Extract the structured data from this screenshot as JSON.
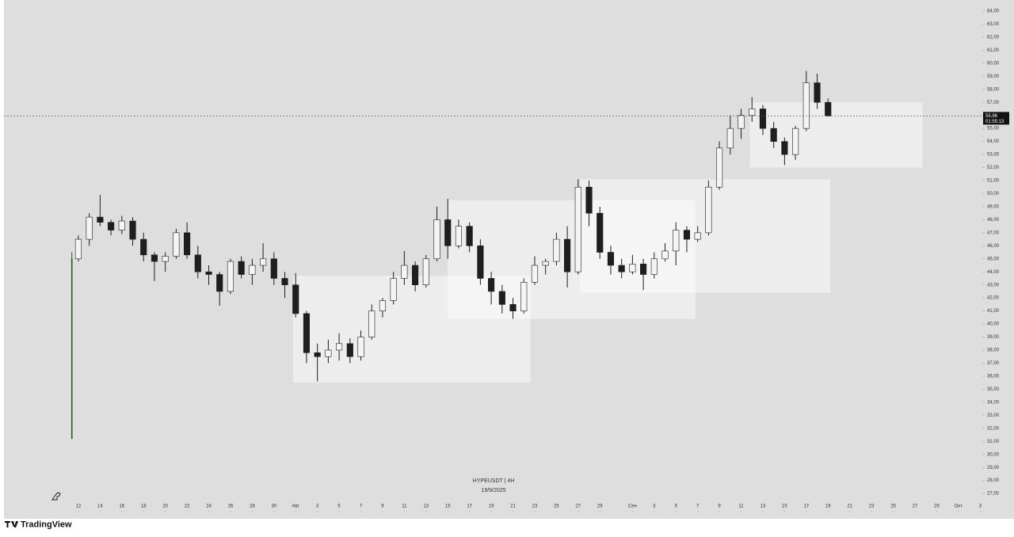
{
  "chart_data": {
    "type": "candlestick",
    "watermark": "HYPEUSDT | 4H",
    "watermark_date": "19/9/2025",
    "brand": "TradingView",
    "up_color": "#f4f4f4",
    "down_color": "#1e1e1e",
    "wick_color": "#1e1e1e",
    "first_color": "#1b5e20",
    "x": [
      11.4,
      12,
      13,
      14,
      15,
      16,
      17,
      18,
      19,
      20,
      21,
      22,
      23,
      24,
      25,
      26,
      27,
      28,
      29,
      30,
      31,
      32,
      33,
      34,
      35,
      36,
      37,
      38,
      39,
      40,
      41,
      42,
      43,
      44,
      45,
      46,
      47,
      48,
      49,
      50,
      51,
      52,
      53,
      54,
      55,
      56,
      57,
      58,
      59,
      60,
      61,
      62,
      63,
      64,
      65,
      66,
      67,
      68,
      69,
      70,
      71,
      72,
      73,
      74,
      75,
      76,
      77,
      78,
      79,
      80,
      81
    ],
    "open": [
      31.2,
      45.0,
      46.5,
      48.2,
      47.8,
      47.2,
      47.9,
      46.5,
      45.3,
      44.8,
      45.2,
      47.0,
      45.3,
      44.0,
      43.8,
      42.5,
      44.8,
      43.8,
      44.5,
      45.0,
      43.5,
      43.0,
      40.8,
      37.8,
      37.5,
      38.0,
      38.5,
      37.5,
      39.0,
      41.0,
      41.8,
      43.5,
      44.5,
      43.0,
      45.0,
      48.0,
      46.0,
      47.5,
      46.0,
      43.5,
      42.5,
      41.5,
      41.0,
      43.2,
      44.5,
      44.8,
      46.5,
      44.0,
      50.5,
      48.5,
      45.5,
      44.5,
      44.0,
      44.6,
      43.8,
      45.0,
      45.6,
      47.2,
      46.5,
      47.0,
      50.5,
      53.5,
      55.0,
      56.0,
      56.5,
      55.0,
      54.0,
      53.0,
      55.0,
      58.5,
      57.0
    ],
    "high": [
      45.5,
      46.8,
      48.5,
      49.9,
      48.0,
      48.3,
      48.2,
      47.0,
      45.5,
      45.5,
      47.3,
      47.8,
      46.0,
      44.5,
      44.0,
      45.0,
      45.2,
      45.0,
      46.2,
      45.5,
      44.0,
      43.9,
      41.0,
      38.5,
      38.8,
      39.3,
      38.9,
      39.5,
      41.5,
      42.0,
      44.0,
      45.6,
      44.8,
      45.3,
      49.0,
      49.6,
      48.0,
      47.8,
      46.5,
      44.0,
      43.0,
      42.0,
      43.5,
      45.2,
      45.0,
      47.0,
      47.5,
      51.1,
      51.0,
      49.0,
      46.0,
      45.0,
      45.3,
      45.0,
      45.5,
      46.2,
      47.8,
      47.5,
      47.5,
      51.0,
      54.0,
      56.0,
      56.5,
      57.4,
      56.8,
      55.5,
      54.3,
      55.2,
      59.4,
      59.2,
      57.3
    ],
    "low": [
      31.2,
      44.8,
      46.0,
      47.5,
      46.8,
      46.9,
      46.0,
      44.8,
      43.3,
      44.0,
      45.0,
      45.0,
      43.5,
      43.0,
      41.4,
      42.3,
      43.5,
      43.0,
      44.0,
      43.0,
      42.0,
      40.5,
      37.0,
      35.6,
      37.0,
      37.2,
      37.0,
      37.2,
      38.8,
      40.5,
      41.5,
      43.0,
      42.5,
      42.8,
      44.8,
      45.0,
      45.8,
      45.5,
      43.0,
      41.5,
      40.8,
      40.4,
      40.8,
      43.0,
      43.8,
      44.5,
      42.8,
      43.8,
      47.5,
      45.0,
      43.8,
      43.5,
      43.8,
      42.6,
      43.5,
      44.8,
      44.5,
      45.5,
      46.3,
      46.8,
      50.3,
      53.0,
      54.2,
      55.5,
      54.5,
      53.5,
      52.2,
      52.6,
      54.8,
      56.5,
      55.9
    ],
    "close": [
      45.0,
      46.5,
      48.2,
      47.8,
      47.2,
      47.9,
      46.5,
      45.3,
      44.8,
      45.2,
      47.0,
      45.3,
      44.0,
      43.8,
      42.5,
      44.8,
      43.8,
      44.5,
      45.0,
      43.5,
      43.0,
      40.8,
      37.8,
      37.5,
      38.0,
      38.5,
      37.5,
      39.0,
      41.0,
      41.8,
      43.5,
      44.5,
      43.0,
      45.0,
      48.0,
      46.0,
      47.5,
      46.0,
      43.5,
      42.5,
      41.5,
      41.0,
      43.2,
      44.5,
      44.8,
      46.5,
      44.0,
      50.5,
      48.5,
      45.5,
      44.5,
      44.0,
      44.6,
      43.8,
      45.0,
      45.6,
      47.2,
      46.5,
      47.0,
      50.5,
      53.5,
      55.0,
      56.0,
      56.5,
      55.0,
      54.0,
      53.0,
      55.0,
      58.5,
      57.0,
      55.96
    ],
    "zones": [
      {
        "x": [
          31.75,
          53.6
        ],
        "y": [
          35.5,
          43.7
        ]
      },
      {
        "x": [
          46.0,
          68.8
        ],
        "y": [
          40.4,
          49.5
        ]
      },
      {
        "x": [
          58.2,
          81.2
        ],
        "y": [
          42.4,
          51.1
        ]
      },
      {
        "x": [
          73.8,
          89.7
        ],
        "y": [
          52.0,
          57.0
        ]
      }
    ],
    "last_price": {
      "value": 55.96,
      "label": "55,96"
    },
    "countdown": "01:55:13",
    "xlim": [
      5.15,
      95.2
    ],
    "ylim": [
      25.67,
      64.85
    ],
    "xticks": [
      {
        "value": 12,
        "label": "12"
      },
      {
        "value": 14,
        "label": "14"
      },
      {
        "value": 16,
        "label": "16"
      },
      {
        "value": 18,
        "label": "18"
      },
      {
        "value": 20,
        "label": "20"
      },
      {
        "value": 22,
        "label": "22"
      },
      {
        "value": 24,
        "label": "24"
      },
      {
        "value": 26,
        "label": "26"
      },
      {
        "value": 28,
        "label": "28"
      },
      {
        "value": 30,
        "label": "30"
      },
      {
        "value": 32,
        "label": "Авг"
      },
      {
        "value": 34,
        "label": "3"
      },
      {
        "value": 36,
        "label": "5"
      },
      {
        "value": 38,
        "label": "7"
      },
      {
        "value": 40,
        "label": "9"
      },
      {
        "value": 42,
        "label": "11"
      },
      {
        "value": 44,
        "label": "13"
      },
      {
        "value": 46,
        "label": "15"
      },
      {
        "value": 48,
        "label": "17"
      },
      {
        "value": 50,
        "label": "19"
      },
      {
        "value": 52,
        "label": "21"
      },
      {
        "value": 54,
        "label": "23"
      },
      {
        "value": 56,
        "label": "25"
      },
      {
        "value": 58,
        "label": "27"
      },
      {
        "value": 60,
        "label": "29"
      },
      {
        "value": 63,
        "label": "Сен"
      },
      {
        "value": 65,
        "label": "3"
      },
      {
        "value": 67,
        "label": "5"
      },
      {
        "value": 69,
        "label": "7"
      },
      {
        "value": 71,
        "label": "9"
      },
      {
        "value": 73,
        "label": "11"
      },
      {
        "value": 75,
        "label": "13"
      },
      {
        "value": 77,
        "label": "15"
      },
      {
        "value": 79,
        "label": "17"
      },
      {
        "value": 81,
        "label": "19"
      },
      {
        "value": 83,
        "label": "21"
      },
      {
        "value": 85,
        "label": "23"
      },
      {
        "value": 87,
        "label": "25"
      },
      {
        "value": 89,
        "label": "27"
      },
      {
        "value": 91,
        "label": "29"
      },
      {
        "value": 93,
        "label": "Окт"
      },
      {
        "value": 95,
        "label": "3"
      }
    ],
    "yticks": [
      {
        "value": 27,
        "label": "27,00"
      },
      {
        "value": 28,
        "label": "28,00"
      },
      {
        "value": 29,
        "label": "29,00"
      },
      {
        "value": 30,
        "label": "30,00"
      },
      {
        "value": 31,
        "label": "31,00"
      },
      {
        "value": 32,
        "label": "32,00"
      },
      {
        "value": 33,
        "label": "33,00"
      },
      {
        "value": 34,
        "label": "34,00"
      },
      {
        "value": 35,
        "label": "35,00"
      },
      {
        "value": 36,
        "label": "36,00"
      },
      {
        "value": 37,
        "label": "37,00"
      },
      {
        "value": 38,
        "label": "38,00"
      },
      {
        "value": 39,
        "label": "39,00"
      },
      {
        "value": 40,
        "label": "40,00"
      },
      {
        "value": 41,
        "label": "41,00"
      },
      {
        "value": 42,
        "label": "42,00"
      },
      {
        "value": 43,
        "label": "43,00"
      },
      {
        "value": 44,
        "label": "44,00"
      },
      {
        "value": 45,
        "label": "45,00"
      },
      {
        "value": 46,
        "label": "46,00"
      },
      {
        "value": 47,
        "label": "47,00"
      },
      {
        "value": 48,
        "label": "48,00"
      },
      {
        "value": 49,
        "label": "49,00"
      },
      {
        "value": 50,
        "label": "50,00"
      },
      {
        "value": 51,
        "label": "51,00"
      },
      {
        "value": 52,
        "label": "52,00"
      },
      {
        "value": 53,
        "label": "53,00"
      },
      {
        "value": 54,
        "label": "54,00"
      },
      {
        "value": 55,
        "label": "55,00"
      },
      {
        "value": 56,
        "label": "56,00"
      },
      {
        "value": 57,
        "label": "57,00"
      },
      {
        "value": 58,
        "label": "58,00"
      },
      {
        "value": 59,
        "label": "59,00"
      },
      {
        "value": 60,
        "label": "60,00"
      },
      {
        "value": 61,
        "label": "61,00"
      },
      {
        "value": 62,
        "label": "62,00"
      },
      {
        "value": 63,
        "label": "63,00"
      },
      {
        "value": 64,
        "label": "64,00"
      }
    ]
  }
}
